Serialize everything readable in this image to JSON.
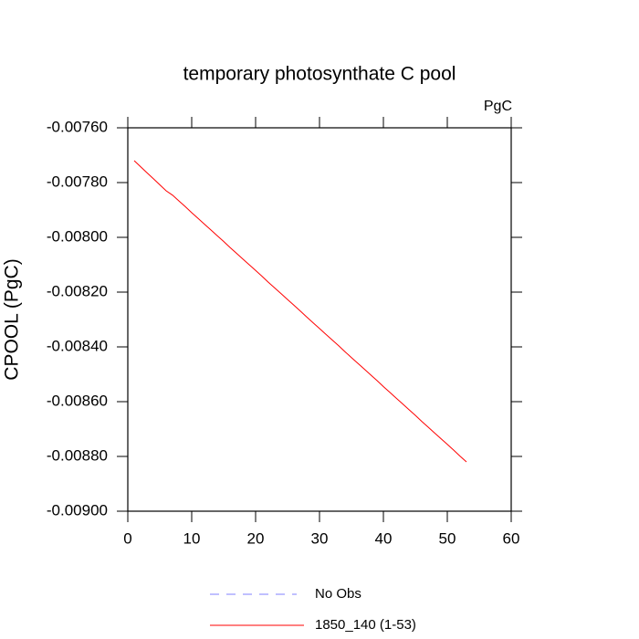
{
  "chart_data": {
    "type": "line",
    "title": "temporary photosynthate C pool",
    "unit_label": "PgC",
    "ylabel": "CPOOL  (PgC)",
    "x": [
      1,
      2,
      3,
      4,
      5,
      6,
      7,
      8,
      9,
      10,
      11,
      12,
      13,
      14,
      15,
      16,
      17,
      18,
      19,
      20,
      21,
      22,
      23,
      24,
      25,
      26,
      27,
      28,
      29,
      30,
      31,
      32,
      33,
      34,
      35,
      36,
      37,
      38,
      39,
      40,
      41,
      42,
      43,
      44,
      45,
      46,
      47,
      48,
      49,
      50,
      51,
      52,
      53
    ],
    "series": [
      {
        "name": "No Obs",
        "color": "#8080ff",
        "dash": true,
        "values": [
          null,
          null,
          null,
          null,
          null,
          null,
          null,
          null,
          null,
          null,
          null,
          null,
          null,
          null,
          null,
          null,
          null,
          null,
          null,
          null,
          null,
          null,
          null,
          null,
          null,
          null,
          null,
          null,
          null,
          null,
          null,
          null,
          null,
          null,
          null,
          null,
          null,
          null,
          null,
          null,
          null,
          null,
          null,
          null,
          null,
          null,
          null,
          null,
          null,
          null,
          null,
          null,
          null
        ]
      },
      {
        "name": "1850_140 (1-53)",
        "color": "#ff0000",
        "dash": false,
        "values": [
          -0.00772,
          -0.007742,
          -0.007764,
          -0.007786,
          -0.007808,
          -0.00783,
          -0.007846,
          -0.007867,
          -0.007888,
          -0.00791,
          -0.007931,
          -0.007952,
          -0.007973,
          -0.007994,
          -0.008015,
          -0.008037,
          -0.008058,
          -0.008079,
          -0.0081,
          -0.008121,
          -0.008142,
          -0.008164,
          -0.008185,
          -0.008206,
          -0.008227,
          -0.008248,
          -0.008269,
          -0.008291,
          -0.008312,
          -0.008333,
          -0.008354,
          -0.008375,
          -0.008396,
          -0.008418,
          -0.008439,
          -0.00846,
          -0.008481,
          -0.008502,
          -0.008523,
          -0.008545,
          -0.008566,
          -0.008587,
          -0.008608,
          -0.008629,
          -0.00865,
          -0.008672,
          -0.008693,
          -0.008714,
          -0.008735,
          -0.008756,
          -0.008777,
          -0.008799,
          -0.00882
        ]
      }
    ],
    "xlim": [
      0,
      60
    ],
    "xticks": [
      0,
      10,
      20,
      30,
      40,
      50,
      60
    ],
    "ylim": [
      -0.009,
      -0.0076
    ],
    "yticks": [
      {
        "value": -0.009,
        "label": "-0.00900"
      },
      {
        "value": -0.0088,
        "label": "-0.00880"
      },
      {
        "value": -0.0086,
        "label": "-0.00860"
      },
      {
        "value": -0.0084,
        "label": "-0.00840"
      },
      {
        "value": -0.0082,
        "label": "-0.00820"
      },
      {
        "value": -0.008,
        "label": "-0.00800"
      },
      {
        "value": -0.0078,
        "label": "-0.00780"
      },
      {
        "value": -0.0076,
        "label": "-0.00760"
      }
    ],
    "grid": false
  }
}
